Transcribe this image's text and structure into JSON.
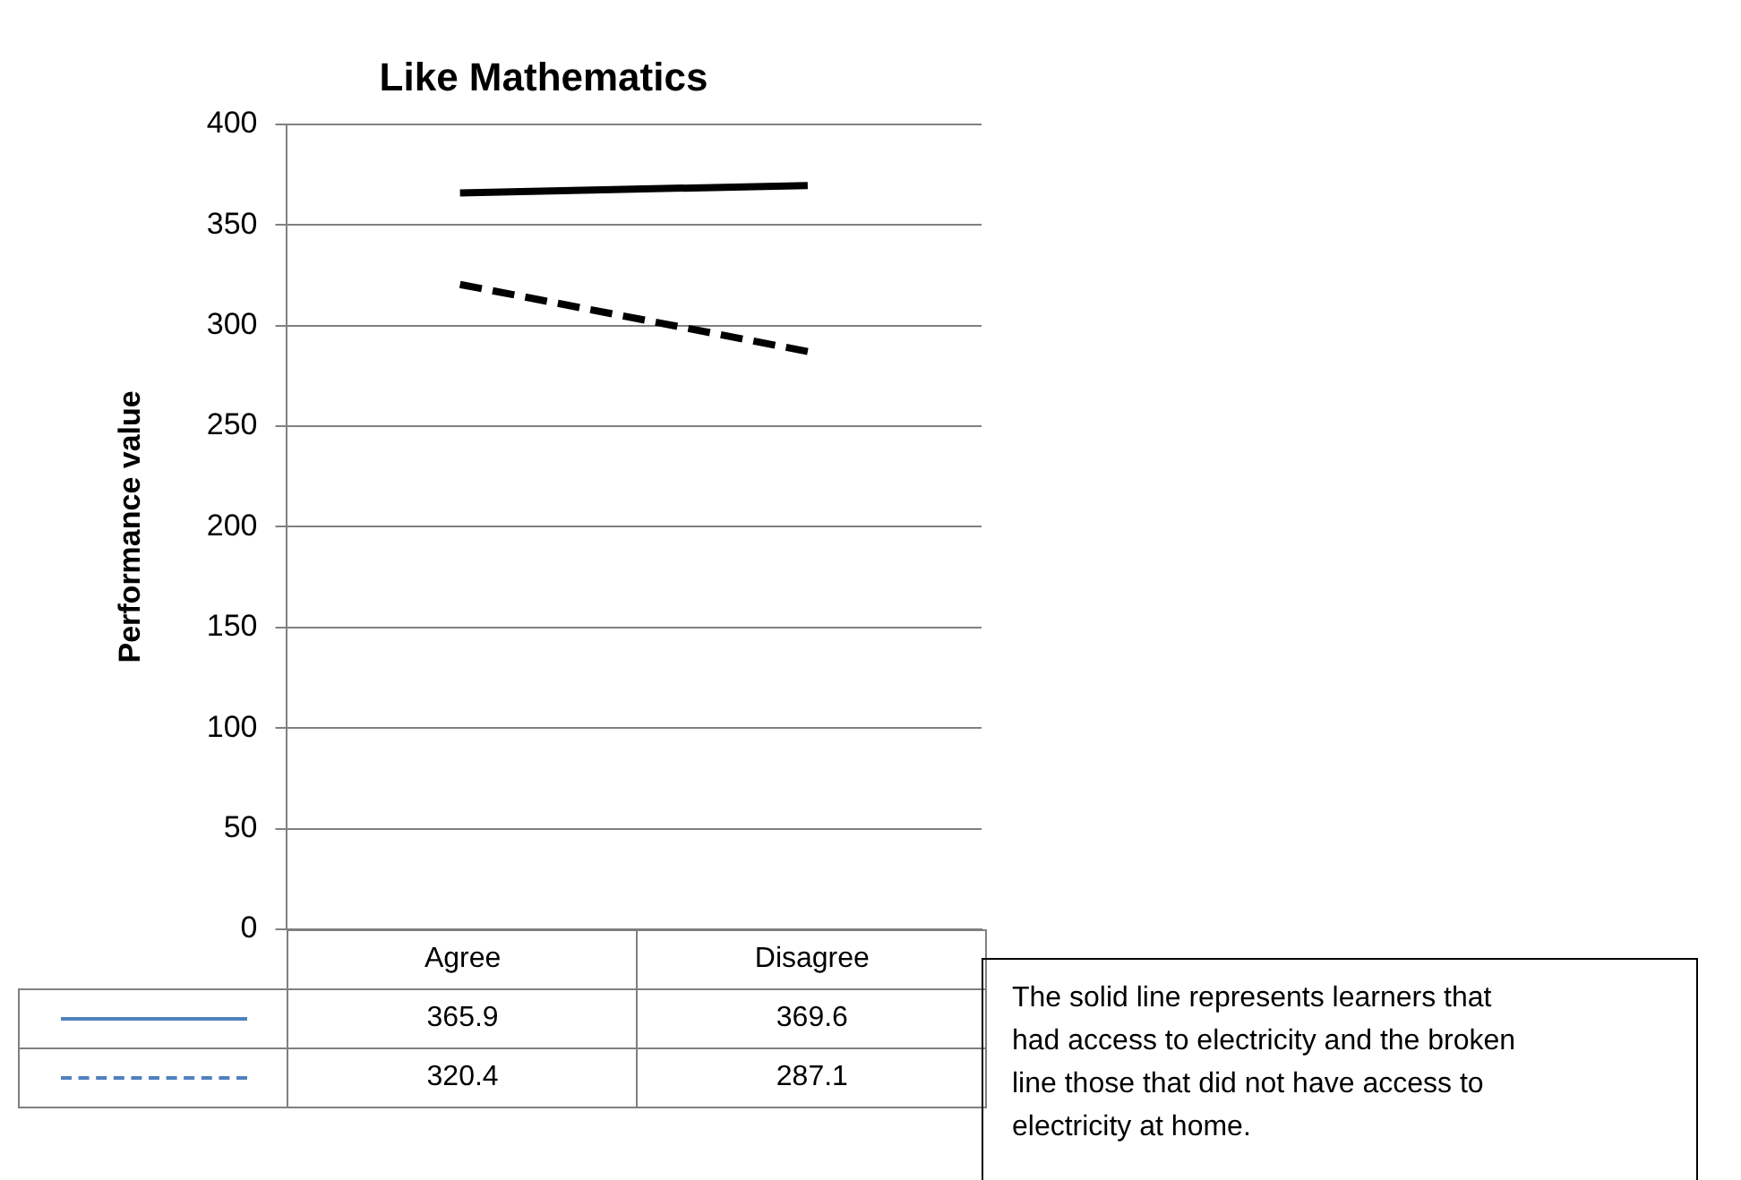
{
  "chart_data": {
    "type": "line",
    "title": "Like Mathematics",
    "ylabel": "Performance value",
    "categories": [
      "Agree",
      "Disagree"
    ],
    "series": [
      {
        "color": "#000000",
        "line_style": "solid",
        "values": [
          365.9,
          369.6
        ]
      },
      {
        "color": "#000000",
        "line_style": "dashed",
        "values": [
          320.4,
          287.1
        ]
      }
    ],
    "ylim": [
      0,
      400
    ],
    "yticks": [
      0,
      50,
      100,
      150,
      200,
      250,
      300,
      350,
      400
    ],
    "grid": "y",
    "marker": "none",
    "legend": false,
    "data_labels": true,
    "annotations": [
      "The solid line represents learners that had access to electricity and the broken line those that did not have access to electricity at home."
    ]
  }
}
